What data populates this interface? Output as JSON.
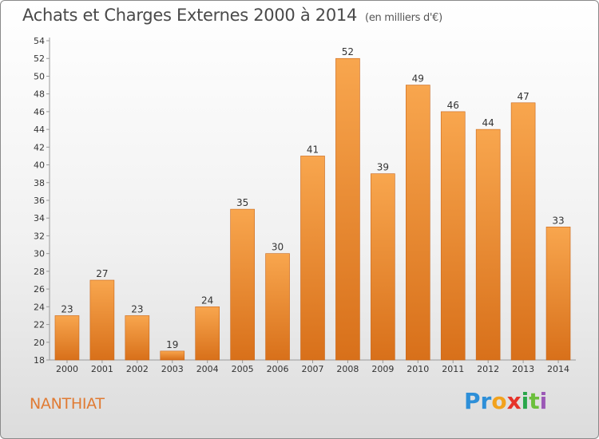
{
  "header": {
    "title": "Achats et Charges Externes 2000 à 2014",
    "unit_note": "(en milliers d'€)"
  },
  "footer": {
    "commune": "NANTHIAT",
    "brand": {
      "letters": [
        "P",
        "r",
        "o",
        "x",
        "i",
        "t",
        "i"
      ],
      "colors": [
        "#2d8fd8",
        "#2d8fd8",
        "#f2a21d",
        "#e6332a",
        "#2aa64a",
        "#6cbf3c",
        "#9b59b6"
      ]
    }
  },
  "colors": {
    "bar_top": "#f8a64e",
    "bar_bottom": "#d8701a",
    "axis": "#999999",
    "text": "#333333",
    "title": "#4a4a4a",
    "commune": "#e07b34"
  },
  "chart_data": {
    "type": "bar",
    "title": "Achats et Charges Externes 2000 à 2014",
    "subtitle": "(en milliers d'€)",
    "categories": [
      "2000",
      "2001",
      "2002",
      "2003",
      "2004",
      "2005",
      "2006",
      "2007",
      "2008",
      "2009",
      "2010",
      "2011",
      "2012",
      "2013",
      "2014"
    ],
    "values": [
      23,
      27,
      23,
      19,
      24,
      35,
      30,
      41,
      52,
      39,
      49,
      46,
      44,
      47,
      33
    ],
    "ylim": [
      18,
      54
    ],
    "yticks": [
      18,
      20,
      22,
      24,
      26,
      28,
      30,
      32,
      34,
      36,
      38,
      40,
      42,
      44,
      46,
      48,
      50,
      52,
      54
    ],
    "grid": false,
    "data_labels": true
  }
}
